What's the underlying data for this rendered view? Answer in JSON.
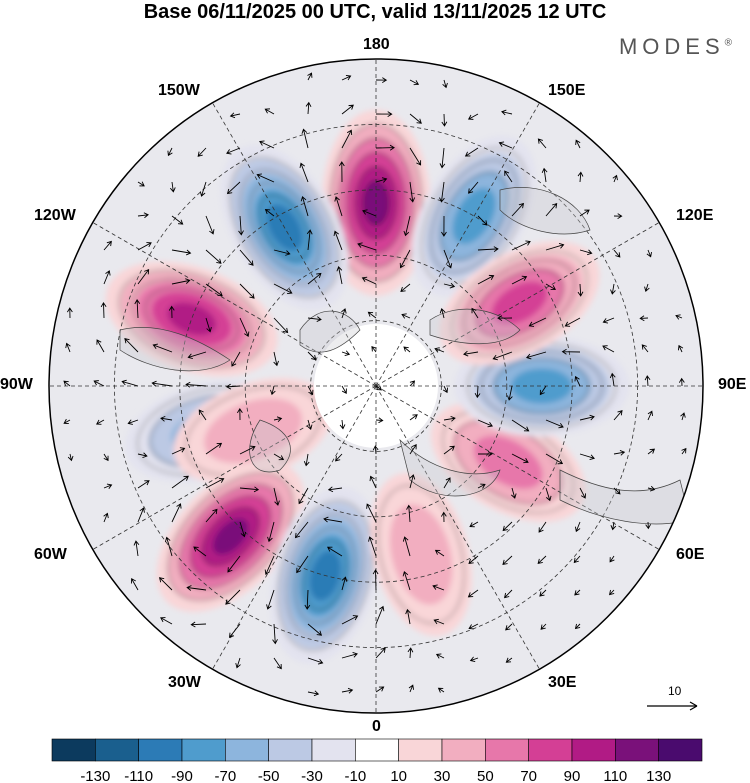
{
  "title": "Base 06/11/2025 00 UTC, valid 13/11/2025 12 UTC",
  "brand": "MODES",
  "brand_mark": "®",
  "longitude_labels": {
    "top": "180",
    "bottom": "0",
    "left": "90W",
    "right": "90E",
    "upper_left": "150W",
    "upper_right": "150E",
    "mid_upper_left": "120W",
    "mid_upper_right": "120E",
    "mid_lower_left": "60W",
    "mid_lower_right": "60E",
    "lower_left": "30W",
    "lower_right": "30E"
  },
  "vector_reference": "10",
  "colorbar": {
    "tick_labels": [
      "-130",
      "-110",
      "-90",
      "-70",
      "-50",
      "-30",
      "-10",
      "10",
      "30",
      "50",
      "70",
      "90",
      "110",
      "130"
    ],
    "colors": [
      "#0c3a5e",
      "#1a5f8e",
      "#2c7bb6",
      "#4f9ccd",
      "#8db5dd",
      "#bcc9e4",
      "#e3e3ef",
      "#ffffff",
      "#f9d6d8",
      "#f2aec0",
      "#e777aa",
      "#d43f95",
      "#b11b85",
      "#7a117a",
      "#4a0b6e"
    ]
  },
  "anomaly_centers": [
    {
      "lon": 180,
      "lat": 48,
      "value": 125
    },
    {
      "lon": 210,
      "lat": 48,
      "value": -105
    },
    {
      "lon": 150,
      "lat": 45,
      "value": -85
    },
    {
      "lon": 250,
      "lat": 45,
      "value": 95
    },
    {
      "lon": 285,
      "lat": 50,
      "value": -55
    },
    {
      "lon": 290,
      "lat": 60,
      "value": 40
    },
    {
      "lon": 316,
      "lat": 42,
      "value": 110
    },
    {
      "lon": 345,
      "lat": 45,
      "value": -105
    },
    {
      "lon": 15,
      "lat": 50,
      "value": 45
    },
    {
      "lon": 60,
      "lat": 55,
      "value": 55
    },
    {
      "lon": 90,
      "lat": 52,
      "value": -80
    },
    {
      "lon": 120,
      "lat": 52,
      "value": 80
    }
  ]
}
